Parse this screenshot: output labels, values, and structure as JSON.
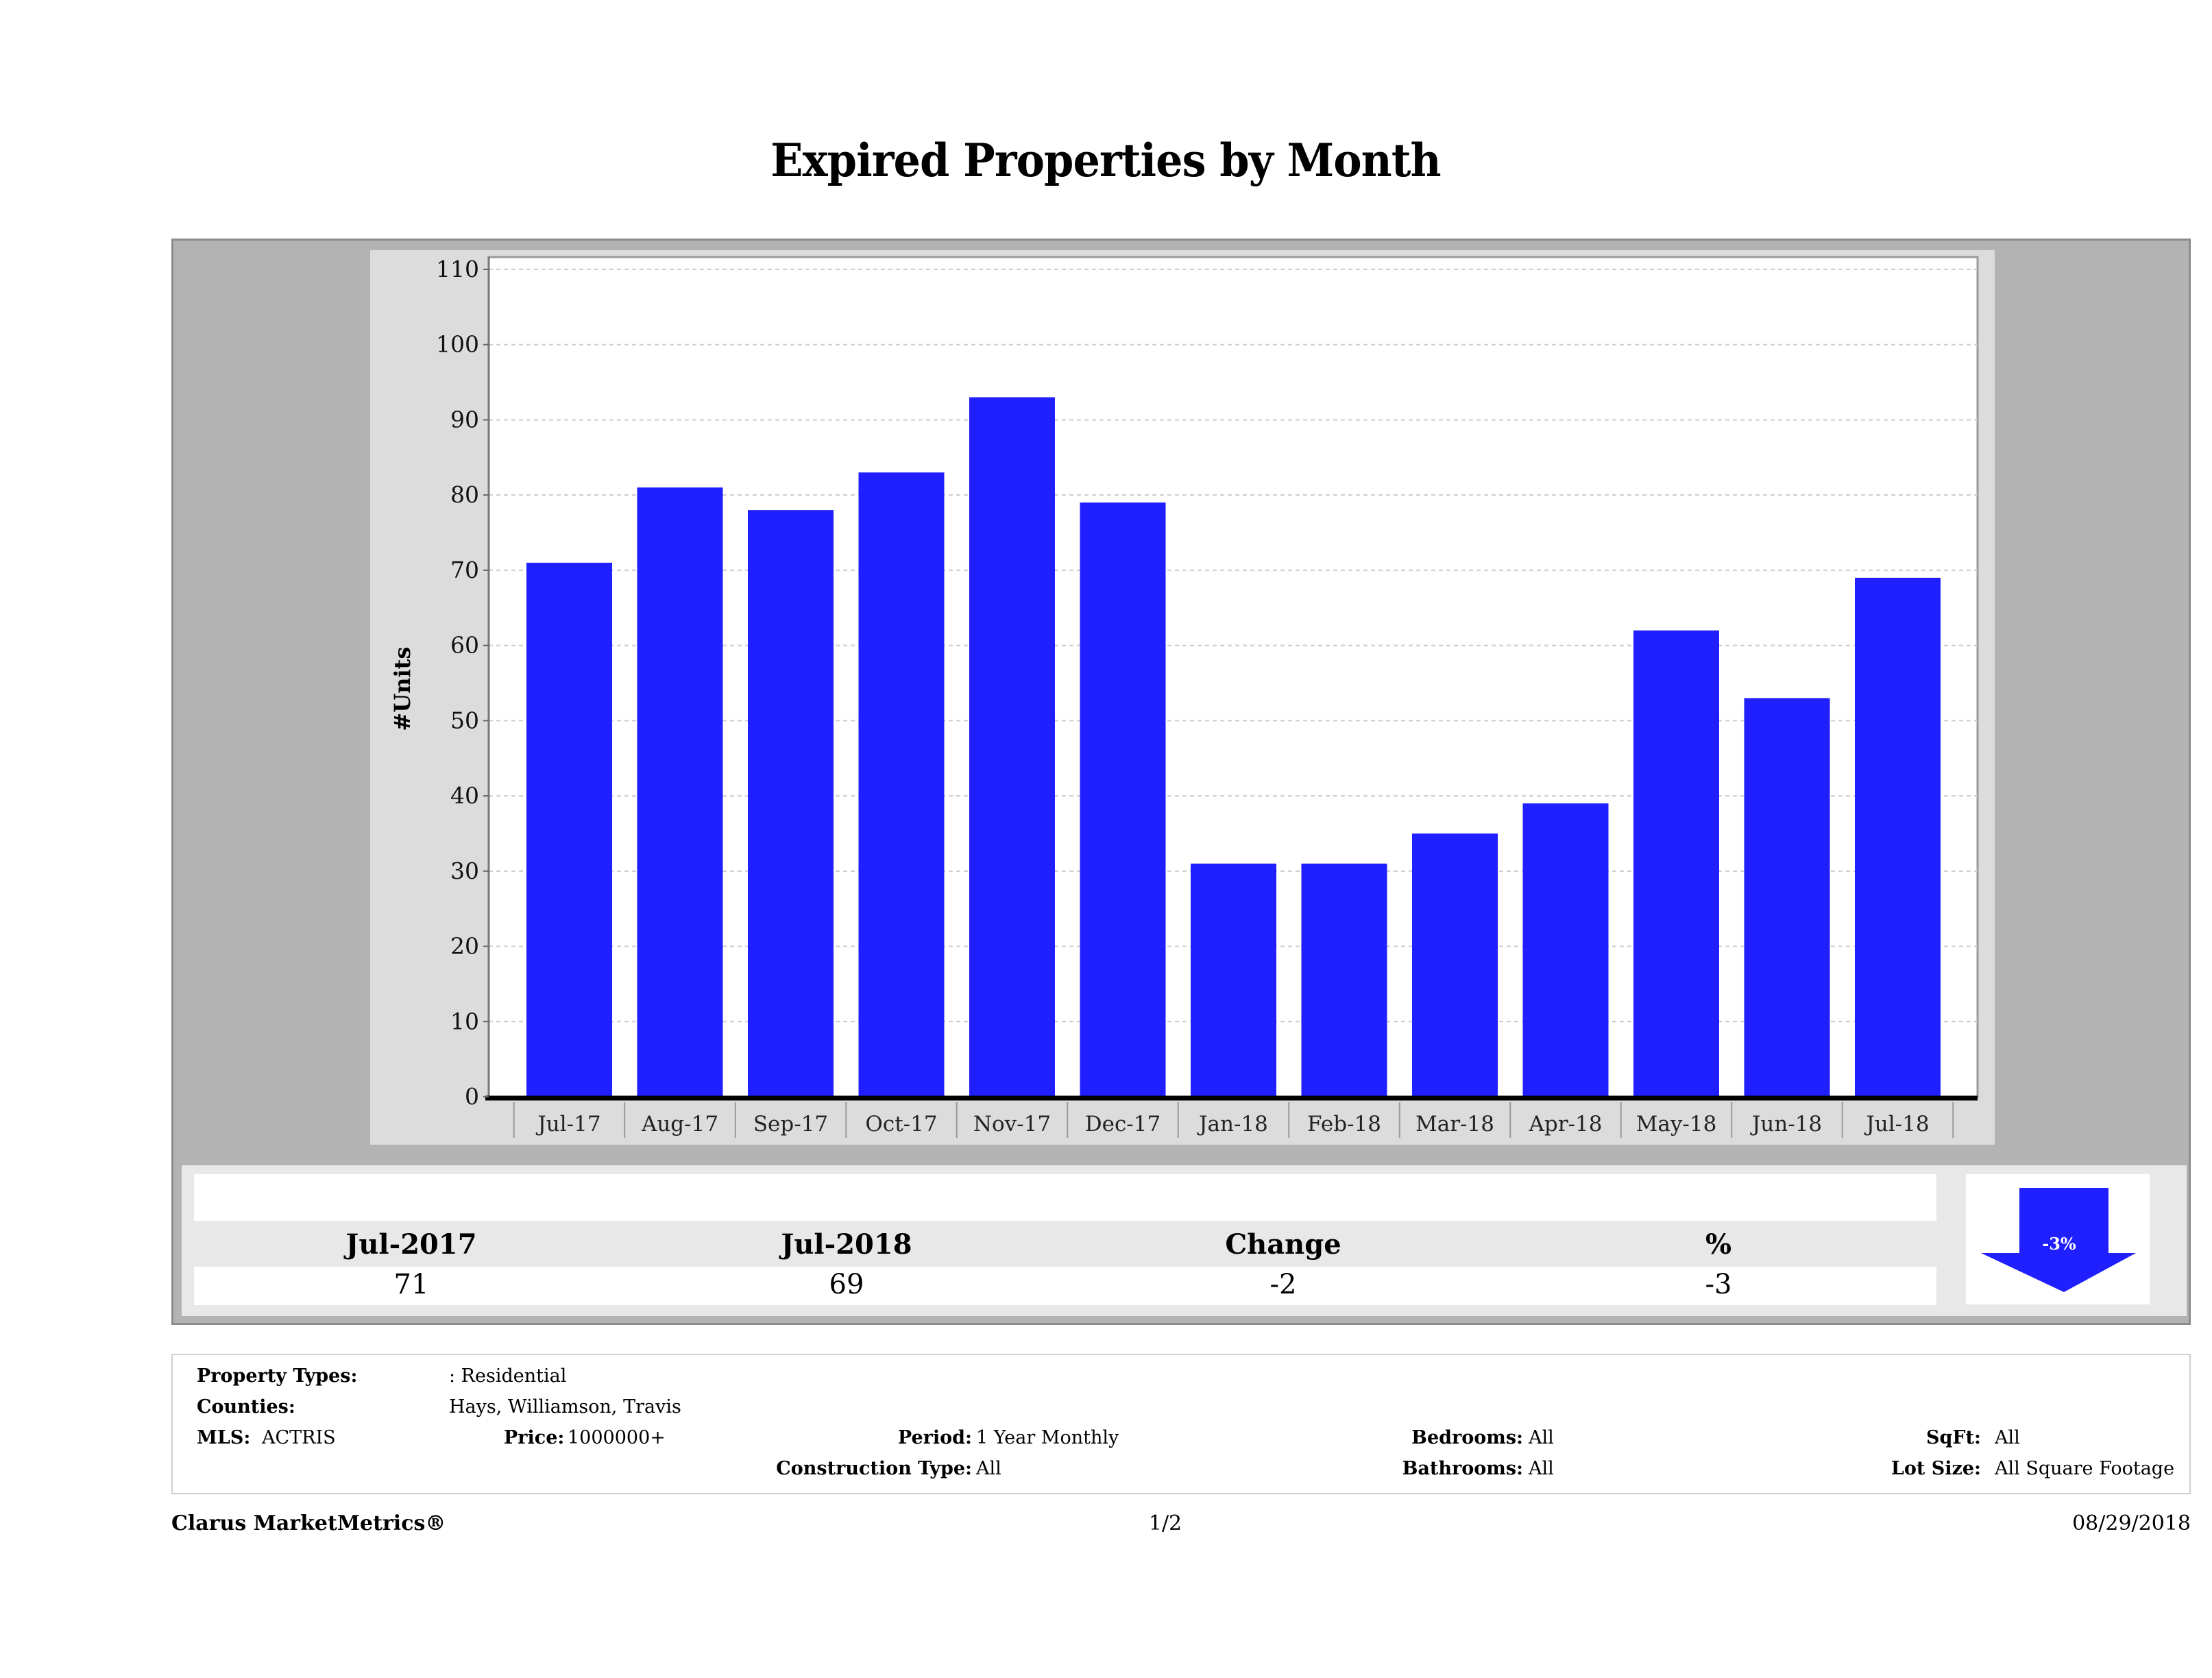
{
  "title": "Expired Properties by Month",
  "colors": {
    "bar": "#1f1fff",
    "outer_panel": "#b3b3b3",
    "chart_box": "#dcdcdc",
    "plot_bg": "#ffffff",
    "gridline": "#cccccc",
    "arrow": "#1f1fff"
  },
  "chart_data": {
    "type": "bar",
    "title": "Expired Properties by Month",
    "xlabel": "",
    "ylabel": "#Units",
    "categories": [
      "Jul-17",
      "Aug-17",
      "Sep-17",
      "Oct-17",
      "Nov-17",
      "Dec-17",
      "Jan-18",
      "Feb-18",
      "Mar-18",
      "Apr-18",
      "May-18",
      "Jun-18",
      "Jul-18"
    ],
    "values": [
      71,
      81,
      78,
      83,
      93,
      79,
      31,
      31,
      35,
      39,
      62,
      53,
      69
    ],
    "ylim": [
      0,
      110
    ],
    "yticks": [
      0,
      10,
      20,
      30,
      40,
      50,
      60,
      70,
      80,
      90,
      100,
      110
    ],
    "grid": true,
    "legend": "none"
  },
  "summary": {
    "headers": [
      "Jul-2017",
      "Jul-2018",
      "Change",
      "%"
    ],
    "values": [
      "71",
      "69",
      "-2",
      "-3"
    ],
    "indicator": {
      "direction": "down",
      "label": "-3%"
    }
  },
  "filters": {
    "property_types": {
      "label": "Property Types:",
      "value": ": Residential"
    },
    "counties": {
      "label": "Counties:",
      "value": "Hays, Williamson, Travis"
    },
    "mls": {
      "label": "MLS:",
      "value": "ACTRIS"
    },
    "price": {
      "label": "Price:",
      "value": "1000000+"
    },
    "period": {
      "label": "Period:",
      "value": "1 Year Monthly"
    },
    "construction_type": {
      "label": "Construction Type:",
      "value": "All"
    },
    "bedrooms": {
      "label": "Bedrooms:",
      "value": "All"
    },
    "bathrooms": {
      "label": "Bathrooms:",
      "value": "All"
    },
    "sqft": {
      "label": "SqFt:",
      "value": "All"
    },
    "lot_size": {
      "label": "Lot Size:",
      "value": "All Square Footage"
    }
  },
  "footer": {
    "brand": "Clarus MarketMetrics®",
    "page": "1/2",
    "date": "08/29/2018"
  }
}
